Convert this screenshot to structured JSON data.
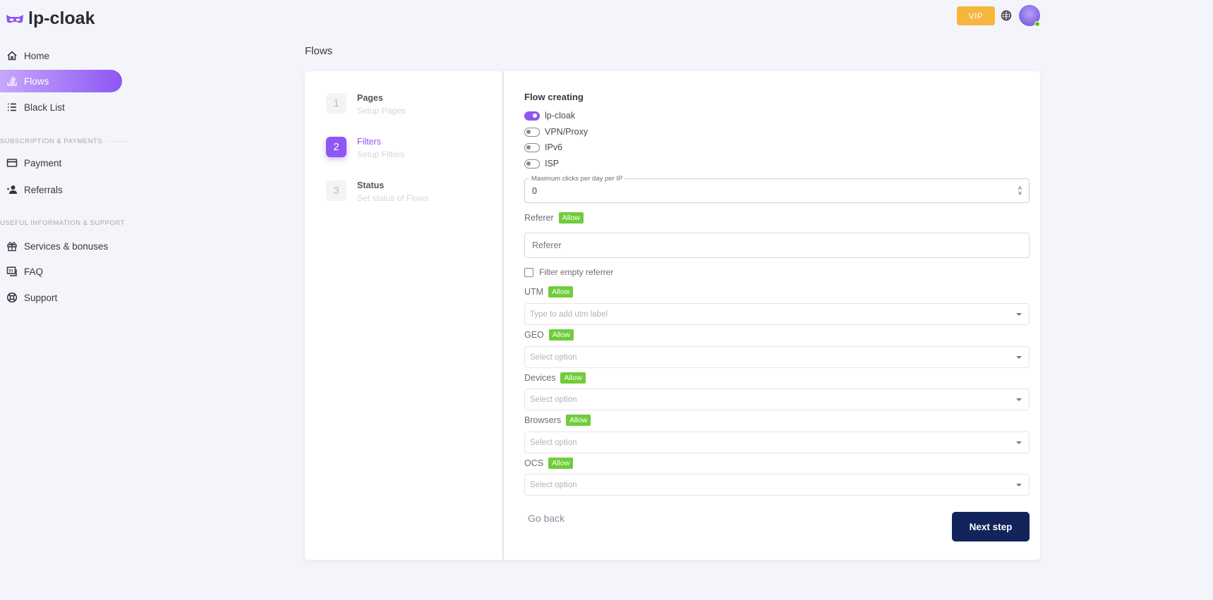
{
  "app": {
    "logo": "lp-cloak",
    "brand_color": "#8c57f3"
  },
  "header": {
    "vip_label": "VIP",
    "status_color": "#56ca00"
  },
  "sidebar": {
    "items": [
      {
        "label": "Home",
        "icon": "home-icon"
      },
      {
        "label": "Flows",
        "icon": "flows-icon",
        "active": true
      },
      {
        "label": "Black List",
        "icon": "list-icon"
      }
    ],
    "section1": "SUBSCRIPTION & PAYMENTS",
    "items2": [
      {
        "label": "Payment",
        "icon": "credit-card-icon"
      },
      {
        "label": "Referrals",
        "icon": "user-plus-icon"
      }
    ],
    "section2": "USEFUL INFORMATION & SUPPORT",
    "items3": [
      {
        "label": "Services & bonuses",
        "icon": "gift-icon"
      },
      {
        "label": "FAQ",
        "icon": "faq-icon"
      },
      {
        "label": "Support",
        "icon": "lifebuoy-icon"
      }
    ]
  },
  "page": {
    "title": "Flows"
  },
  "steps": [
    {
      "num": "1",
      "title": "Pages",
      "sub": "Setup Pages"
    },
    {
      "num": "2",
      "title": "Filters",
      "sub": "Setup Filters",
      "active": true
    },
    {
      "num": "3",
      "title": "Status",
      "sub": "Set status of Flows"
    }
  ],
  "form": {
    "heading": "Flow creating",
    "toggles": [
      {
        "label": "lp-cloak",
        "on": true
      },
      {
        "label": "VPN/Proxy",
        "on": false
      },
      {
        "label": "IPv6",
        "on": false
      },
      {
        "label": "ISP",
        "on": false
      }
    ],
    "max_clicks": {
      "label": "Maximum clicks per day per IP",
      "value": "0"
    },
    "referer": {
      "label": "Referer",
      "badge": "Allow",
      "placeholder": "Referer"
    },
    "filter_empty": {
      "label": "Filter empty referrer",
      "checked": false
    },
    "utm": {
      "label": "UTM",
      "badge": "Allow",
      "placeholder": "Type to add utm label"
    },
    "geo": {
      "label": "GEO",
      "badge": "Allow",
      "placeholder": "Select option"
    },
    "devices": {
      "label": "Devices",
      "badge": "Allow",
      "placeholder": "Select option"
    },
    "browsers": {
      "label": "Browsers",
      "badge": "Allow",
      "placeholder": "Select option"
    },
    "ocs": {
      "label": "OCS",
      "badge": "Allow",
      "placeholder": "Select option"
    },
    "go_back": "Go back",
    "next": "Next step"
  }
}
